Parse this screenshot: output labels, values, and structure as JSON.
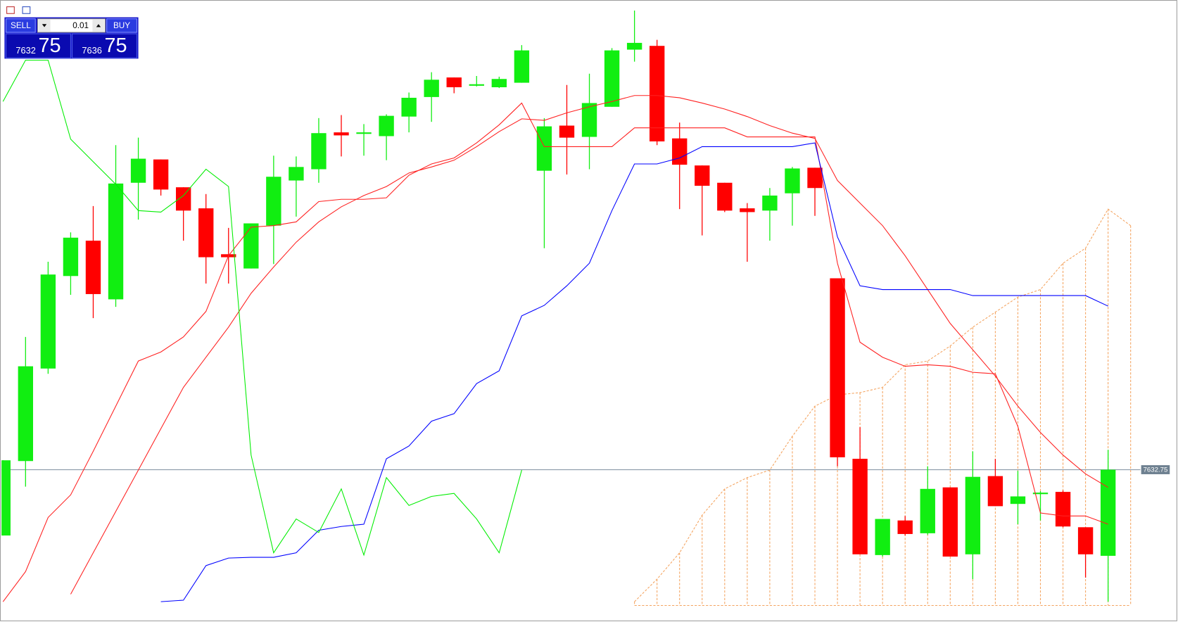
{
  "chart_data": {
    "type": "candlestick",
    "ylim": [
      7534,
      7945
    ],
    "current_price": 7632.75,
    "up_color": "#11ee11",
    "down_color": "#ff0000",
    "open": [
      7589,
      7638.5,
      7700,
      7761.5,
      7785,
      7746,
      7823.5,
      7839,
      7820.5,
      7806.5,
      7776,
      7766.5,
      7795,
      7825,
      7832.5,
      7857,
      7856,
      7854.5,
      7867.5,
      7880.5,
      7893.5,
      7888,
      7887,
      7890,
      7831.5,
      7861.5,
      7854,
      7874,
      7912,
      7914.5,
      7853,
      7835,
      7823.5,
      7806.5,
      7805,
      7816.5,
      7833.5,
      7760,
      7640,
      7576,
      7599,
      7590.5,
      7621,
      7576.5,
      7628.5,
      7610,
      7616,
      7618,
      7594.5,
      7575.5,
      null
    ],
    "high": [
      7639,
      7721,
      7771,
      7790.5,
      7808,
      7848.5,
      7853.5,
      7839,
      7820.5,
      7816,
      7793.5,
      7796.5,
      7841.5,
      7841,
      7866.5,
      7868.5,
      7862.5,
      7869,
      7883.5,
      7897,
      7893.5,
      7894.5,
      7894,
      7915,
      7866.5,
      7888.5,
      7896,
      7913,
      7938,
      7918.5,
      7863.5,
      7835,
      7823.5,
      7810,
      7820,
      7834,
      7833.5,
      7760,
      7661,
      7600,
      7602,
      7635,
      7621,
      7645,
      7640,
      7632,
      7618.5,
      7619,
      7594.5,
      7646,
      null
    ],
    "low": [
      7589,
      7621.5,
      7696.5,
      7749,
      7733.5,
      7741,
      7799,
      7815,
      7785,
      7756.5,
      7756.5,
      7766.5,
      7769.5,
      7801,
      7823.5,
      7841,
      7841.5,
      7838.5,
      7857,
      7864,
      7883,
      7887.5,
      7886.5,
      7890,
      7780,
      7829,
      7832.5,
      7874,
      7904,
      7848.5,
      7806,
      7788.5,
      7804,
      7771,
      7785,
      7795,
      7801.5,
      7635,
      7576.5,
      7575,
      7589,
      7589.5,
      7575,
      7560,
      7608.5,
      7596.5,
      7599,
      7594.5,
      7561,
      7545,
      null
    ],
    "close": [
      7639,
      7701.5,
      7762.5,
      7787,
      7749.5,
      7823,
      7839.5,
      7819,
      7805,
      7774,
      7774,
      7796.5,
      7827.5,
      7834,
      7856.5,
      7855,
      7856.5,
      7868,
      7880,
      7892,
      7887,
      7888.5,
      7892.5,
      7911.5,
      7861,
      7853.5,
      7876.5,
      7911.5,
      7916.5,
      7851,
      7835.5,
      7821.5,
      7805,
      7804,
      7815,
      7833,
      7820,
      7641,
      7576.5,
      7600,
      7590,
      7620,
      7575,
      7628,
      7608.5,
      7615,
      7617,
      7595,
      7576.5,
      7632.75,
      null
    ],
    "lines": [
      {
        "color": "#ff2020",
        "values": [
          7545,
          7565,
          7601,
          7616,
          7645,
          7675,
          7705,
          7711,
          7721,
          7738,
          7775,
          7794,
          7795,
          7797.5,
          7811,
          7812.5,
          7812.5,
          7813.5,
          7828.5,
          7836,
          7840,
          7850,
          7862,
          7876.5,
          7847.5,
          7847.5,
          7847.5,
          7847.5,
          7860,
          7860,
          7860,
          7860,
          7860,
          7854,
          7854,
          7854,
          7854,
          7770,
          7717.5,
          7707.5,
          7701.5,
          7702.5,
          7701.5,
          7697.5,
          7696.5,
          7661.5,
          7604,
          7602,
          7602,
          7596.5,
          null
        ]
      },
      {
        "color": "#ff2020",
        "values": [
          null,
          null,
          null,
          7550,
          7577.5,
          7605,
          7632.5,
          7660,
          7687.5,
          7707.5,
          7727.5,
          7750,
          7767.5,
          7784,
          7797.5,
          7807.5,
          7815,
          7821,
          7830,
          7834,
          7838.5,
          7847.5,
          7857.5,
          7866,
          7865,
          7870,
          7874,
          7877.5,
          7881.5,
          7881.5,
          7880,
          7876.5,
          7872.5,
          7867.5,
          7861.5,
          7856.5,
          7853,
          7825,
          7810,
          7795,
          7775,
          7752.5,
          7730,
          7712.5,
          7695,
          7675,
          7657.5,
          7642.5,
          7630,
          7621,
          null
        ]
      },
      {
        "color": "#0000ff",
        "values": [
          null,
          null,
          null,
          null,
          null,
          null,
          null,
          7545,
          7546,
          7569,
          7574,
          7574.5,
          7574.5,
          7577.5,
          7592.5,
          7595,
          7596.5,
          7640,
          7648.5,
          7665,
          7670,
          7690,
          7698.5,
          7735,
          7742,
          7755,
          7770,
          7805,
          7836,
          7836,
          7840,
          7847.5,
          7847.5,
          7847.5,
          7847.5,
          7847.5,
          7850,
          7787.5,
          7755,
          7752.5,
          7752.5,
          7752.5,
          7752.5,
          7748.5,
          7748.5,
          7748.5,
          7748.5,
          7748.5,
          7748.5,
          7741.5,
          null
        ]
      },
      {
        "color": "#00ee00",
        "values": [
          7877.5,
          7905,
          7905,
          7852.5,
          7837.5,
          7822.5,
          7805,
          7804,
          7815,
          7832.5,
          7821,
          7642.5,
          7577.5,
          7600,
          7591,
          7620,
          7576,
          7627.5,
          7609,
          7615,
          7617,
          7600,
          7577.5,
          7632.5,
          null,
          null,
          null,
          null,
          null,
          null,
          null,
          null,
          null,
          null,
          null,
          null,
          null,
          null,
          null,
          null,
          null,
          null,
          null,
          null,
          null,
          null,
          null,
          null,
          null,
          null,
          null
        ]
      }
    ],
    "cloud": {
      "color": "#f4a460",
      "span_a": [
        null,
        null,
        null,
        null,
        null,
        null,
        null,
        null,
        null,
        null,
        null,
        null,
        null,
        null,
        null,
        null,
        null,
        null,
        null,
        null,
        null,
        null,
        null,
        null,
        null,
        null,
        null,
        null,
        7545,
        7560,
        7577.5,
        7602.5,
        7620,
        7627.5,
        7632.5,
        7655,
        7675,
        7682.5,
        7684,
        7687.5,
        7702.5,
        7705,
        7715,
        7727.5,
        7737.5,
        7747.5,
        7752.5,
        7770,
        7780,
        7806,
        7795
      ],
      "span_b": [
        null,
        null,
        null,
        null,
        null,
        null,
        null,
        null,
        null,
        null,
        null,
        null,
        null,
        null,
        null,
        null,
        null,
        null,
        null,
        null,
        null,
        null,
        null,
        null,
        null,
        null,
        null,
        null,
        7542.5,
        7542.5,
        7542.5,
        7542.5,
        7542.5,
        7542.5,
        7542.5,
        7542.5,
        7542.5,
        7542.5,
        7542.5,
        7542.5,
        7542.5,
        7542.5,
        7542.5,
        7542.5,
        7542.5,
        7542.5,
        7542.5,
        7542.5,
        7542.5,
        7542.5,
        7542.5
      ]
    }
  },
  "trade_panel": {
    "sell": "SELL",
    "buy": "BUY",
    "lot": "0.01",
    "bid_main": "7632",
    "bid_pips": "75",
    "ask_main": "7636",
    "ask_pips": "75"
  }
}
